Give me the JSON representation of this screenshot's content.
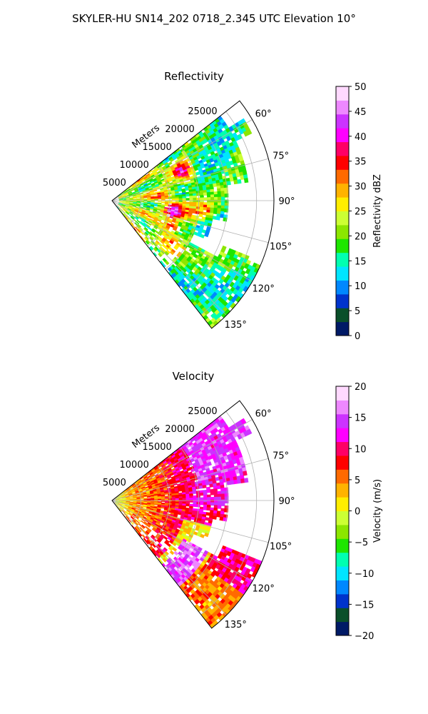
{
  "figure_title": "SKYLER-HU  SN14_202  0718_2.345 UTC Elevation 10°",
  "chart_data": [
    {
      "type": "heatmap",
      "projection": "polar-sector",
      "title": "Reflectivity",
      "range_label": "Meters",
      "range_ticks": [
        5000,
        10000,
        15000,
        20000,
        25000
      ],
      "range_tick_labels": [
        "5000",
        "10000",
        "15000",
        "20000",
        "25000"
      ],
      "range_max": 28000,
      "azimuth_ticks": [
        60,
        75,
        90,
        105,
        120,
        135
      ],
      "azimuth_tick_labels": [
        "60°",
        "75°",
        "90°",
        "105°",
        "120°",
        "135°"
      ],
      "azimuth_range": [
        52,
        142
      ],
      "grid": true,
      "colorbar": {
        "label": "Reflectivity dBZ",
        "vmin": 0,
        "vmax": 50,
        "ticks": [
          0,
          5,
          10,
          15,
          20,
          25,
          30,
          35,
          40,
          45,
          50
        ],
        "tick_labels": [
          "0",
          "5",
          "10",
          "15",
          "20",
          "25",
          "30",
          "35",
          "40",
          "45",
          "50"
        ],
        "colormap": [
          "#001a66",
          "#0a4f2a",
          "#0033cc",
          "#0088ff",
          "#00e5ff",
          "#00ffb0",
          "#1ee600",
          "#8ce600",
          "#ccff33",
          "#ffee00",
          "#ffb300",
          "#ff6a00",
          "#ff0000",
          "#ff0066",
          "#ff00ff",
          "#cc33ff",
          "#ee88ff",
          "#ffd9ff"
        ]
      }
    },
    {
      "type": "heatmap",
      "projection": "polar-sector",
      "title": "Velocity",
      "range_label": "Meters",
      "range_ticks": [
        5000,
        10000,
        15000,
        20000,
        25000
      ],
      "range_tick_labels": [
        "5000",
        "10000",
        "15000",
        "20000",
        "25000"
      ],
      "range_max": 28000,
      "azimuth_ticks": [
        60,
        75,
        90,
        105,
        120,
        135
      ],
      "azimuth_tick_labels": [
        "60°",
        "75°",
        "90°",
        "105°",
        "120°",
        "135°"
      ],
      "azimuth_range": [
        52,
        142
      ],
      "grid": true,
      "colorbar": {
        "label": "Velocity (m/s)",
        "vmin": -20,
        "vmax": 20,
        "ticks": [
          -20,
          -15,
          -10,
          -5,
          0,
          5,
          10,
          15,
          20
        ],
        "tick_labels": [
          "−20",
          "−15",
          "−10",
          "−5",
          "0",
          "5",
          "10",
          "15",
          "20"
        ],
        "colormap": [
          "#001a66",
          "#0a4f2a",
          "#0033cc",
          "#0088ff",
          "#00e5ff",
          "#00ffb0",
          "#1ee600",
          "#8ce600",
          "#ccff33",
          "#ffee00",
          "#ffb300",
          "#ff6a00",
          "#ff0000",
          "#ff0066",
          "#ff00ff",
          "#cc33ff",
          "#ee88ff",
          "#ffd9ff"
        ]
      }
    }
  ]
}
